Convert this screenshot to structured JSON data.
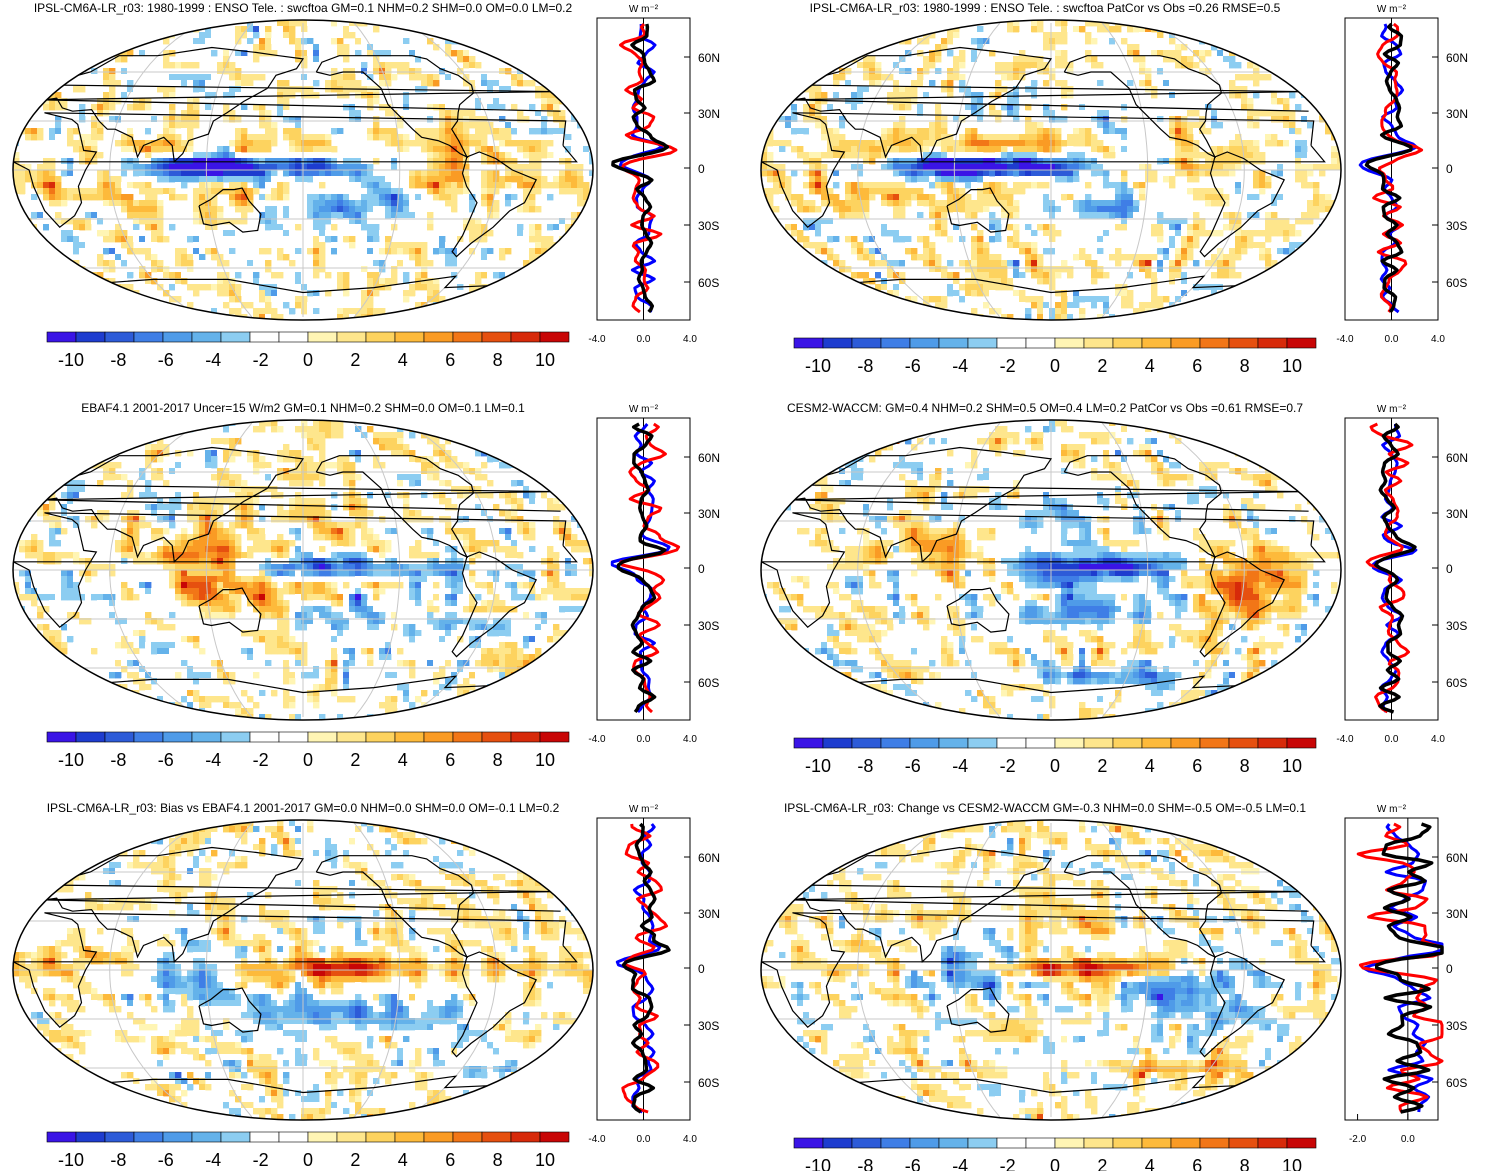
{
  "panels": [
    {
      "title": "IPSL-CM6A-LR_r03: 1980-1999 : ENSO Tele. : swcftoa GM=0.1 NHM=0.2 SHM=0.0 OM=0.0 LM=0.2",
      "units": "W m⁻²",
      "profile_x_ticks": [
        "-4.0",
        "0.0",
        "4.0"
      ],
      "profile_x_range": [
        -4,
        4
      ]
    },
    {
      "title": "IPSL-CM6A-LR_r03: 1980-1999 : ENSO Tele. : swcftoa PatCor vs Obs =0.26 RMSE=0.5",
      "units": "W m⁻²",
      "profile_x_ticks": [
        "-4.0",
        "0.0",
        "4.0"
      ],
      "profile_x_range": [
        -4,
        4
      ]
    },
    {
      "title": "EBAF4.1 2001-2017 Uncer=15 W/m2 GM=0.1 NHM=0.2 SHM=0.0 OM=0.1 LM=0.1",
      "units": "W m⁻²",
      "profile_x_ticks": [
        "-4.0",
        "0.0",
        "4.0"
      ],
      "profile_x_range": [
        -4,
        4
      ]
    },
    {
      "title": "CESM2-WACCM: GM=0.4 NHM=0.2 SHM=0.5 OM=0.4 LM=0.2 PatCor vs Obs =0.61 RMSE=0.7",
      "units": "W m⁻²",
      "profile_x_ticks": [
        "-4.0",
        "0.0",
        "4.0"
      ],
      "profile_x_range": [
        -4,
        4
      ]
    },
    {
      "title": "IPSL-CM6A-LR_r03: Bias vs EBAF4.1 2001-2017 GM=0.0 NHM=0.0 SHM=0.0 OM=-0.1 LM=0.2",
      "units": "W m⁻²",
      "profile_x_ticks": [
        "-4.0",
        "0.0",
        "4.0"
      ],
      "profile_x_range": [
        -4,
        4
      ]
    },
    {
      "title": "IPSL-CM6A-LR_r03: Change vs CESM2-WACCM GM=-0.3 NHM=0.0 SHM=-0.5 OM=-0.5 LM=0.1",
      "units": "W m⁻²",
      "profile_x_ticks": [
        "-2.0",
        "0.0"
      ],
      "profile_x_range": [
        -2.5,
        1.2
      ]
    }
  ],
  "lat_labels": [
    "60N",
    "30N",
    "0",
    "30S",
    "60S"
  ],
  "colorbar_labels": [
    "-10",
    "-8",
    "-6",
    "-4",
    "-2",
    "0",
    "2",
    "4",
    "6",
    "8",
    "10"
  ],
  "colorbar_colors": [
    "#3a14e6",
    "#1e3ccf",
    "#2d5bd8",
    "#3f7ee6",
    "#4f9be8",
    "#64b2ea",
    "#8ccdf1",
    "#ffffff",
    "#ffffff",
    "#fff5b4",
    "#fee68c",
    "#fdd35f",
    "#fdba3b",
    "#fa9b24",
    "#f27617",
    "#e6500f",
    "#d72a0a",
    "#c80606"
  ],
  "profile_line_colors": {
    "model": "#0000ff",
    "obs": "#ff0000",
    "mean": "#000000"
  }
}
